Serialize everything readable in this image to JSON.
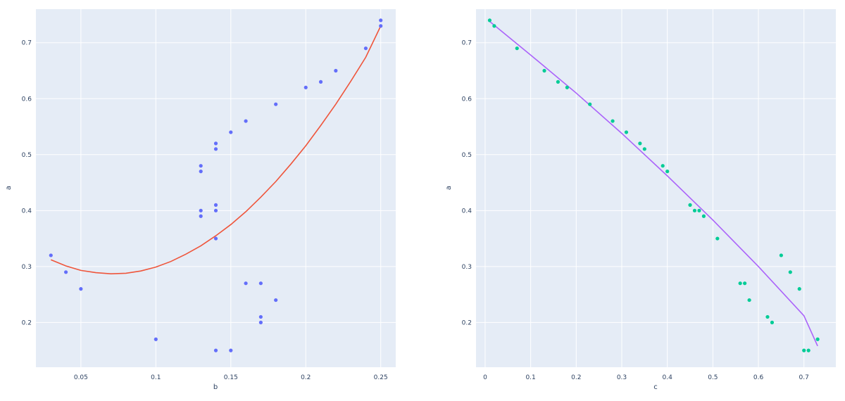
{
  "style": {
    "plot_bg": "#e5ecf6",
    "grid_color": "#ffffff",
    "tick_color": "#2a3f5f",
    "left_marker_color": "#636efa",
    "left_fit_color": "#ef553b",
    "right_marker_color": "#00cc96",
    "right_fit_color": "#ab63fa"
  },
  "chart_data": [
    {
      "type": "scatter",
      "title": "",
      "xlabel": "b",
      "ylabel": "a",
      "xlim": [
        0.02,
        0.26
      ],
      "ylim": [
        0.12,
        0.76
      ],
      "xticks": [
        0.05,
        0.1,
        0.15,
        0.2,
        0.25
      ],
      "xtick_labels": [
        "0.05",
        "0.1",
        "0.15",
        "0.2",
        "0.25"
      ],
      "yticks": [
        0.2,
        0.3,
        0.4,
        0.5,
        0.6,
        0.7
      ],
      "ytick_labels": [
        "0.2",
        "0.3",
        "0.4",
        "0.5",
        "0.6",
        "0.7"
      ],
      "grid": true,
      "legend": "none",
      "series": [
        {
          "mode": "markers",
          "color": "#636efa",
          "x": [
            0.03,
            0.04,
            0.05,
            0.1,
            0.13,
            0.13,
            0.13,
            0.13,
            0.14,
            0.14,
            0.14,
            0.14,
            0.14,
            0.14,
            0.15,
            0.15,
            0.16,
            0.16,
            0.17,
            0.17,
            0.17,
            0.18,
            0.18,
            0.2,
            0.21,
            0.22,
            0.24,
            0.25,
            0.25
          ],
          "y": [
            0.32,
            0.29,
            0.26,
            0.17,
            0.48,
            0.47,
            0.4,
            0.39,
            0.52,
            0.51,
            0.41,
            0.4,
            0.35,
            0.15,
            0.54,
            0.15,
            0.56,
            0.27,
            0.27,
            0.21,
            0.2,
            0.59,
            0.24,
            0.62,
            0.63,
            0.65,
            0.69,
            0.74,
            0.73
          ]
        },
        {
          "mode": "lines",
          "color": "#ef553b",
          "x": [
            0.03,
            0.04,
            0.05,
            0.06,
            0.07,
            0.08,
            0.09,
            0.1,
            0.11,
            0.12,
            0.13,
            0.14,
            0.15,
            0.16,
            0.17,
            0.18,
            0.19,
            0.2,
            0.21,
            0.22,
            0.23,
            0.24,
            0.25
          ],
          "y": [
            0.312,
            0.301,
            0.293,
            0.289,
            0.287,
            0.288,
            0.292,
            0.299,
            0.309,
            0.322,
            0.337,
            0.355,
            0.375,
            0.398,
            0.424,
            0.452,
            0.483,
            0.516,
            0.552,
            0.59,
            0.631,
            0.674,
            0.73
          ]
        }
      ]
    },
    {
      "type": "scatter",
      "title": "",
      "xlabel": "c",
      "ylabel": "a",
      "xlim": [
        -0.02,
        0.77
      ],
      "ylim": [
        0.12,
        0.76
      ],
      "xticks": [
        0,
        0.1,
        0.2,
        0.3,
        0.4,
        0.5,
        0.6,
        0.7
      ],
      "xtick_labels": [
        "0",
        "0.1",
        "0.2",
        "0.3",
        "0.4",
        "0.5",
        "0.6",
        "0.7"
      ],
      "yticks": [
        0.2,
        0.3,
        0.4,
        0.5,
        0.6,
        0.7
      ],
      "ytick_labels": [
        "0.2",
        "0.3",
        "0.4",
        "0.5",
        "0.6",
        "0.7"
      ],
      "grid": true,
      "legend": "none",
      "series": [
        {
          "mode": "markers",
          "color": "#00cc96",
          "x": [
            0.01,
            0.02,
            0.07,
            0.13,
            0.16,
            0.18,
            0.23,
            0.28,
            0.31,
            0.34,
            0.35,
            0.39,
            0.4,
            0.45,
            0.46,
            0.47,
            0.48,
            0.51,
            0.56,
            0.57,
            0.58,
            0.62,
            0.63,
            0.65,
            0.67,
            0.69,
            0.7,
            0.71,
            0.73
          ],
          "y": [
            0.74,
            0.73,
            0.69,
            0.65,
            0.63,
            0.62,
            0.59,
            0.56,
            0.54,
            0.52,
            0.51,
            0.48,
            0.47,
            0.41,
            0.4,
            0.4,
            0.39,
            0.35,
            0.27,
            0.27,
            0.24,
            0.21,
            0.2,
            0.32,
            0.29,
            0.26,
            0.15,
            0.15,
            0.17
          ]
        },
        {
          "mode": "lines",
          "color": "#ab63fa",
          "x": [
            0.01,
            0.1,
            0.2,
            0.3,
            0.4,
            0.5,
            0.6,
            0.7,
            0.73
          ],
          "y": [
            0.738,
            0.678,
            0.61,
            0.538,
            0.462,
            0.383,
            0.3,
            0.212,
            0.158
          ]
        }
      ]
    }
  ]
}
